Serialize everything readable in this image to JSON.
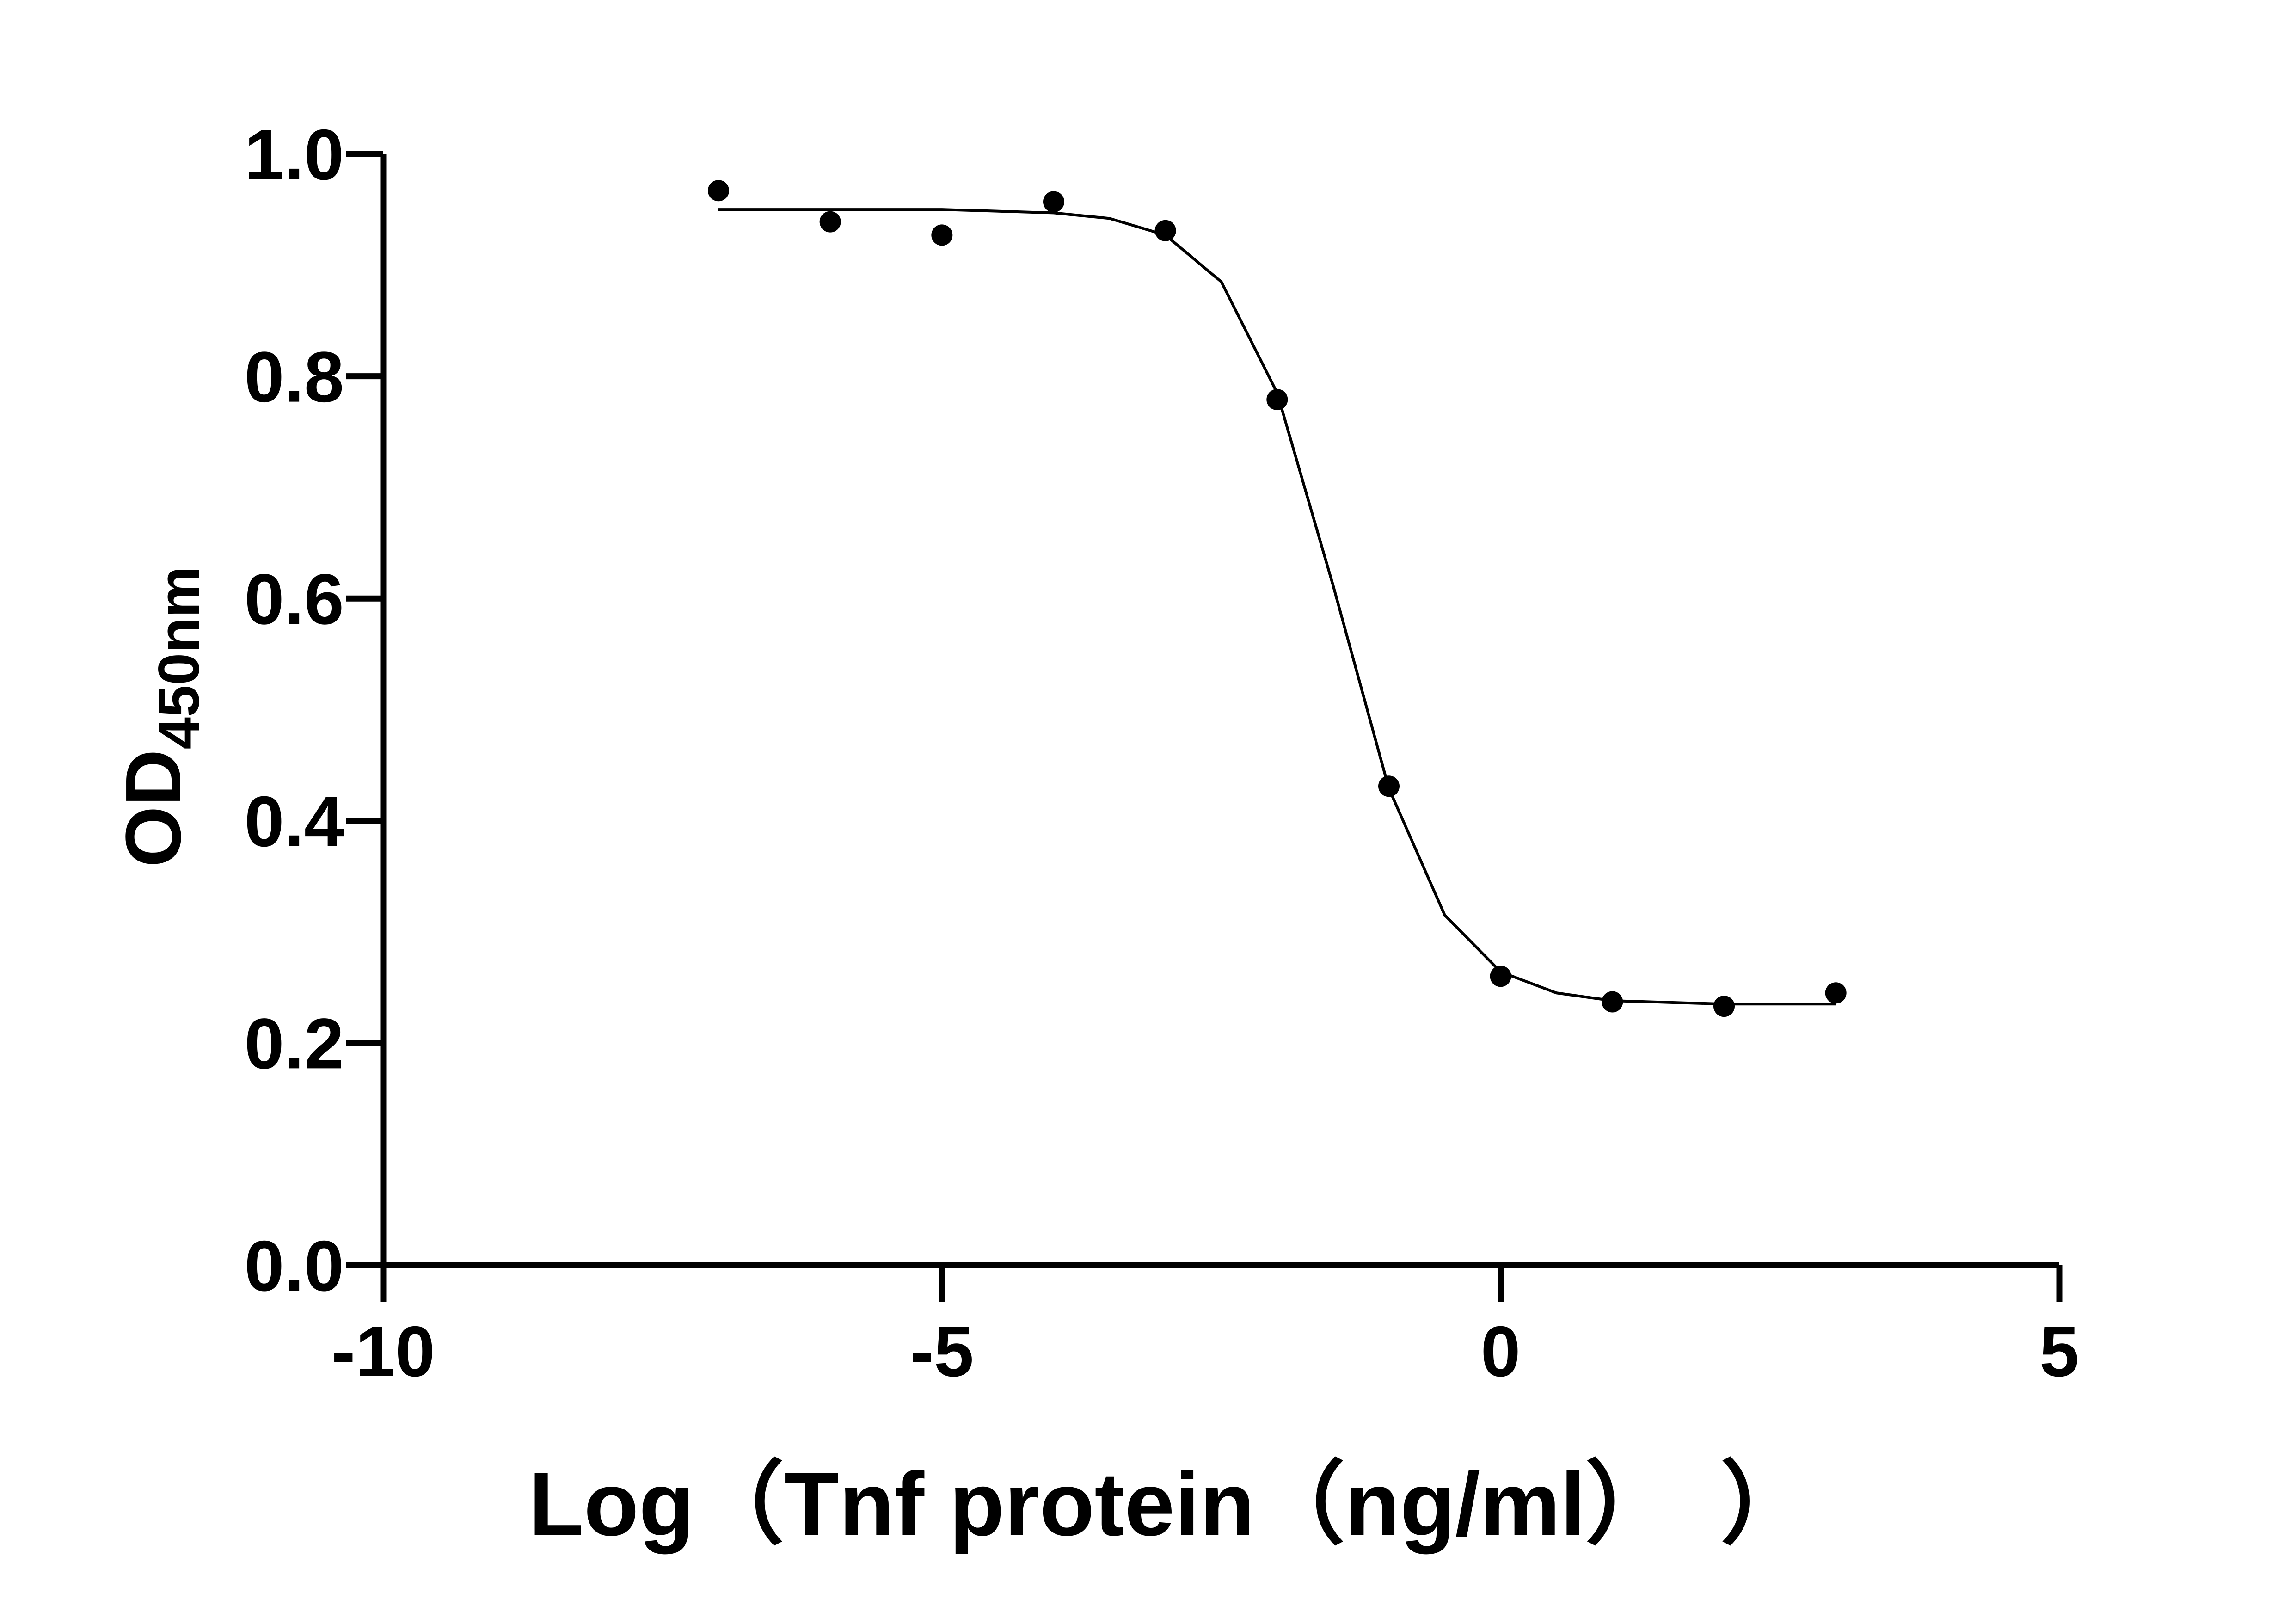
{
  "chart_data": {
    "type": "scatter",
    "xlabel": "Log（Tnf protein（ng/ml）　）",
    "ylabel": {
      "main": "OD",
      "sub": "450nm"
    },
    "xlim": [
      -10,
      5
    ],
    "xticks": [
      -10,
      -5,
      0,
      5
    ],
    "ylim": [
      0,
      1
    ],
    "yticks": [
      {
        "value": 0,
        "label": "0.0"
      },
      0.2,
      0.4,
      0.6,
      0.8,
      {
        "value": 1,
        "label": "1.0"
      }
    ],
    "color": "#000000",
    "points": {
      "x": [
        -7,
        -6,
        -5,
        -4,
        -3,
        -2,
        -1,
        0,
        1,
        2,
        3
      ],
      "values": [
        0.967,
        0.939,
        0.927,
        0.957,
        0.931,
        0.779,
        0.431,
        0.26,
        0.237,
        0.233,
        0.245
      ]
    },
    "curve": {
      "x": [
        -7,
        -6,
        -5,
        -4,
        -3.5,
        -3,
        -2.5,
        -2,
        -1.5,
        -1,
        -0.5,
        0,
        0.5,
        1,
        2,
        3
      ],
      "values": [
        0.95,
        0.95,
        0.95,
        0.947,
        0.942,
        0.927,
        0.885,
        0.785,
        0.612,
        0.429,
        0.315,
        0.264,
        0.245,
        0.238,
        0.235,
        0.235
      ]
    }
  }
}
